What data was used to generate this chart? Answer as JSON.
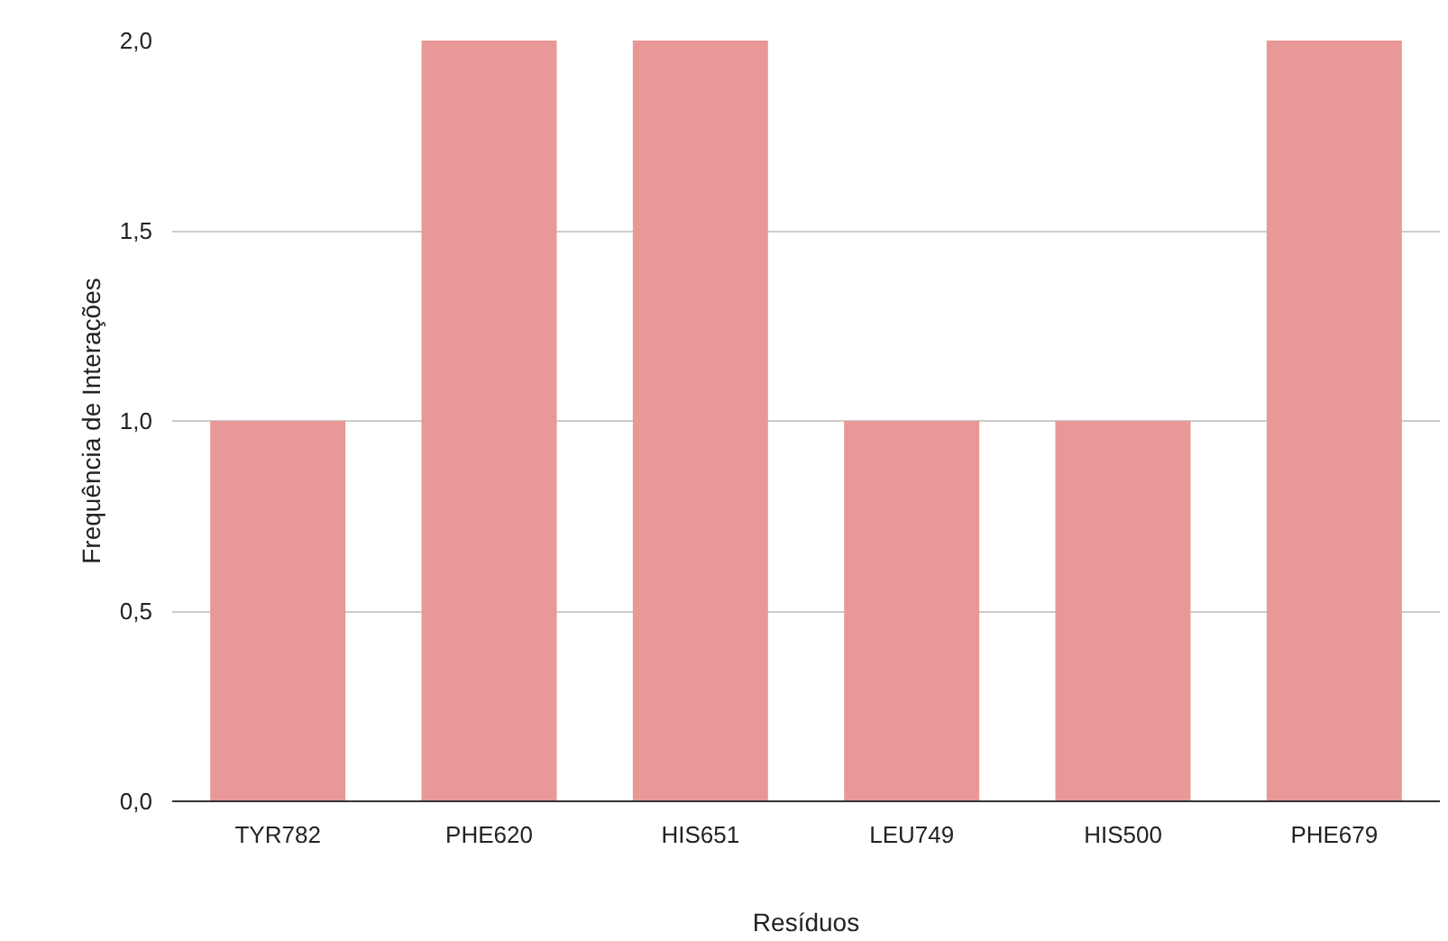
{
  "chart_data": {
    "type": "bar",
    "xlabel": "Resíduos",
    "ylabel": "Frequência de Interações",
    "categories": [
      "TYR782",
      "PHE620",
      "HIS651",
      "LEU749",
      "HIS500",
      "PHE679"
    ],
    "values": [
      1,
      2,
      2,
      1,
      1,
      2
    ],
    "color": "#e89896",
    "ylim": [
      0,
      2
    ],
    "yticks": [
      {
        "value": 0,
        "label": "0,0"
      },
      {
        "value": 0.5,
        "label": "0,5"
      },
      {
        "value": 1,
        "label": "1,0"
      },
      {
        "value": 1.5,
        "label": "1,5"
      },
      {
        "value": 2,
        "label": "2,0"
      }
    ],
    "grid": "y"
  }
}
